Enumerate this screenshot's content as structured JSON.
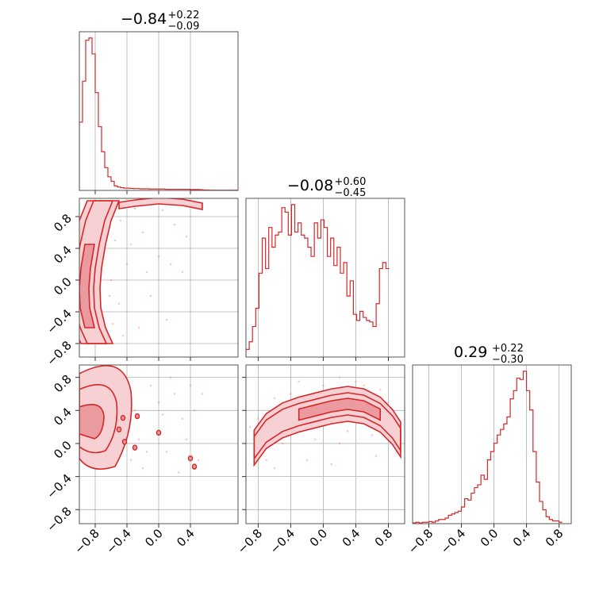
{
  "colors": {
    "accent": "#d62728",
    "fill_inner": "#eb9aa0",
    "fill_outer": "#f6d0d3",
    "points": "#e98a90",
    "grid": "#b0b0b0",
    "frame": "#555555"
  },
  "chart_data": [
    {
      "panel": "hist-param-1",
      "type": "bar",
      "title": {
        "median": "−0.84",
        "plus": "+0.22",
        "minus": "−0.09"
      },
      "xlim": [
        -1.0,
        1.0
      ],
      "grid": true,
      "bin_edges_start": -1.0,
      "bin_width": 0.04,
      "values": [
        30,
        48,
        66,
        67,
        60,
        43,
        28,
        17,
        10,
        6,
        4,
        2,
        1.5,
        1.2,
        1.0,
        1.0,
        0.9,
        0.8,
        0.8,
        0.7,
        0.7,
        0.7,
        0.6,
        0.6,
        0.6,
        0.6,
        0.6,
        0.5,
        0.5,
        0.5,
        0.5,
        0.5,
        0.5,
        0.5,
        0.5,
        0.4,
        0.4,
        0.4,
        0.3,
        0.2,
        0.2,
        0.1,
        0.1,
        0.1,
        0.1,
        0.1,
        0.1,
        0.1,
        0.1,
        0.1
      ]
    },
    {
      "panel": "hist-param-2",
      "type": "bar",
      "title": {
        "median": "−0.08",
        "plus": "+0.60",
        "minus": "−0.45"
      },
      "xlim": [
        -0.95,
        1.0
      ],
      "grid": true,
      "bin_edges_start": -0.95,
      "bin_width": 0.04,
      "values": [
        0.05,
        0.1,
        0.2,
        0.32,
        0.55,
        0.78,
        0.58,
        0.85,
        0.72,
        0.8,
        0.82,
        0.98,
        0.95,
        0.8,
        1.0,
        0.82,
        0.88,
        0.8,
        0.78,
        0.72,
        0.66,
        0.88,
        0.78,
        0.9,
        0.85,
        0.66,
        0.78,
        0.6,
        0.72,
        0.55,
        0.62,
        0.4,
        0.5,
        0.28,
        0.24,
        0.3,
        0.26,
        0.24,
        0.23,
        0.2,
        0.35,
        0.58,
        0.62,
        0.58
      ]
    },
    {
      "panel": "hist-param-3",
      "type": "bar",
      "title": {
        "median": "0.29",
        "plus": "+0.22",
        "minus": "−0.30"
      },
      "xlim": [
        -1.0,
        0.95
      ],
      "grid": true,
      "bin_edges_start": -1.0,
      "bin_width": 0.04,
      "values": [
        0.005,
        0.01,
        0.005,
        0.01,
        0.01,
        0.015,
        0.01,
        0.02,
        0.03,
        0.03,
        0.04,
        0.06,
        0.07,
        0.08,
        0.09,
        0.12,
        0.18,
        0.17,
        0.22,
        0.26,
        0.28,
        0.35,
        0.32,
        0.46,
        0.52,
        0.58,
        0.64,
        0.68,
        0.72,
        0.77,
        0.9,
        0.96,
        1.05,
        1.04,
        1.1,
        0.96,
        0.82,
        0.52,
        0.3,
        0.16,
        0.1,
        0.05,
        0.03,
        0.02,
        0.02,
        0.01
      ]
    },
    {
      "panel": "contour-p1-p2",
      "type": "scatter",
      "description": "2D density contours, p1 (x) vs p2 (y)",
      "xlim": [
        -1.0,
        1.0
      ],
      "ylim": [
        -0.97,
        1.03
      ],
      "grid": true,
      "ridge": [
        [
          -0.7,
          1.0
        ],
        [
          -0.8,
          0.75
        ],
        [
          -0.87,
          0.45
        ],
        [
          -0.92,
          0.15
        ],
        [
          -0.94,
          -0.1
        ],
        [
          -0.93,
          -0.35
        ],
        [
          -0.87,
          -0.6
        ],
        [
          -0.78,
          -0.8
        ]
      ],
      "top_arc": [
        [
          -0.5,
          0.94
        ],
        [
          -0.3,
          0.97
        ],
        [
          0.0,
          1.0
        ],
        [
          0.3,
          0.98
        ],
        [
          0.55,
          0.93
        ]
      ],
      "scatter": [
        [
          -0.6,
          0.0
        ],
        [
          -0.55,
          0.5
        ],
        [
          -0.5,
          -0.3
        ],
        [
          -0.4,
          0.2
        ],
        [
          -0.3,
          0.9
        ],
        [
          -0.2,
          0.6
        ],
        [
          -0.1,
          -0.2
        ],
        [
          0.0,
          0.3
        ],
        [
          0.1,
          -0.5
        ],
        [
          0.2,
          0.7
        ],
        [
          0.3,
          0.1
        ],
        [
          0.4,
          0.8
        ],
        [
          -0.45,
          -0.7
        ],
        [
          -0.65,
          0.8
        ],
        [
          -0.58,
          -0.55
        ],
        [
          0.05,
          0.88
        ],
        [
          -0.35,
          0.45
        ],
        [
          -0.25,
          -0.6
        ],
        [
          0.15,
          0.2
        ],
        [
          -0.7,
          0.3
        ],
        [
          -0.62,
          -0.2
        ],
        [
          0.35,
          0.55
        ],
        [
          -0.15,
          0.1
        ],
        [
          0.45,
          0.95
        ],
        [
          -0.48,
          0.75
        ]
      ]
    },
    {
      "panel": "contour-p1-p3",
      "type": "scatter",
      "description": "2D density contours, p1 (x) vs p3 (y)",
      "xlim": [
        -1.0,
        1.0
      ],
      "ylim": [
        -0.97,
        0.95
      ],
      "grid": true,
      "blob_center": [
        -0.85,
        0.25
      ],
      "islands": [
        [
          -0.5,
          0.17
        ],
        [
          -0.45,
          0.31
        ],
        [
          -0.43,
          0.02
        ],
        [
          -0.3,
          -0.05
        ],
        [
          -0.27,
          0.33
        ],
        [
          0.0,
          0.13
        ],
        [
          0.4,
          -0.18
        ],
        [
          0.45,
          -0.28
        ]
      ],
      "scatter": [
        [
          -0.6,
          0.5
        ],
        [
          -0.5,
          -0.1
        ],
        [
          -0.4,
          0.6
        ],
        [
          -0.3,
          0.4
        ],
        [
          -0.2,
          -0.3
        ],
        [
          -0.1,
          0.7
        ],
        [
          0.0,
          0.5
        ],
        [
          0.1,
          -0.1
        ],
        [
          0.2,
          0.6
        ],
        [
          0.3,
          0.3
        ],
        [
          0.4,
          0.7
        ],
        [
          0.5,
          -0.2
        ],
        [
          -0.55,
          0.7
        ],
        [
          -0.35,
          -0.2
        ],
        [
          0.15,
          0.8
        ],
        [
          -0.25,
          0.05
        ],
        [
          0.25,
          -0.35
        ],
        [
          0.05,
          0.35
        ],
        [
          -0.45,
          0.45
        ],
        [
          0.35,
          0.05
        ],
        [
          -0.15,
          -0.1
        ],
        [
          0.45,
          0.4
        ],
        [
          -0.65,
          -0.25
        ],
        [
          0.55,
          0.6
        ]
      ]
    },
    {
      "panel": "contour-p2-p3",
      "type": "scatter",
      "description": "2D density contours, p2 (x) vs p3 (y)",
      "xlim": [
        -0.95,
        1.0
      ],
      "ylim": [
        -0.97,
        0.95
      ],
      "grid": true,
      "ridge": [
        [
          -0.85,
          -0.05
        ],
        [
          -0.7,
          0.15
        ],
        [
          -0.5,
          0.28
        ],
        [
          -0.3,
          0.35
        ],
        [
          -0.1,
          0.4
        ],
        [
          0.1,
          0.45
        ],
        [
          0.3,
          0.48
        ],
        [
          0.5,
          0.45
        ],
        [
          0.7,
          0.35
        ],
        [
          0.85,
          0.2
        ],
        [
          0.95,
          0.05
        ]
      ],
      "scatter": [
        [
          -0.8,
          0.3
        ],
        [
          -0.6,
          -0.3
        ],
        [
          -0.4,
          0.6
        ],
        [
          -0.2,
          -0.2
        ],
        [
          0.0,
          0.7
        ],
        [
          0.2,
          0.0
        ],
        [
          0.4,
          0.75
        ],
        [
          0.6,
          0.1
        ],
        [
          0.8,
          0.5
        ],
        [
          -0.7,
          -0.2
        ],
        [
          -0.3,
          0.75
        ],
        [
          0.1,
          -0.25
        ],
        [
          0.5,
          0.7
        ],
        [
          0.9,
          -0.1
        ],
        [
          -0.5,
          0.0
        ],
        [
          0.3,
          0.15
        ],
        [
          -0.1,
          0.05
        ],
        [
          0.7,
          0.65
        ],
        [
          -0.9,
          0.2
        ],
        [
          0.2,
          0.8
        ],
        [
          -0.6,
          0.55
        ],
        [
          0.65,
          -0.15
        ]
      ]
    }
  ],
  "axes": {
    "ticks_x_left": [
      "−0.8",
      "−0.4",
      "0.0",
      "0.4"
    ],
    "ticks_x_mid": [
      "−0.8",
      "−0.4",
      "0.0",
      "0.4",
      "0.8"
    ],
    "ticks_x_right": [
      "−0.8",
      "−0.4",
      "0.0",
      "0.4",
      "0.8"
    ],
    "ticks_y_row1": [
      "0.8",
      "0.4",
      "0.0",
      "−0.4",
      "−0.8"
    ],
    "ticks_y_row2": [
      "0.8",
      "0.4",
      "0.0",
      "−0.4",
      "−0.8"
    ]
  }
}
